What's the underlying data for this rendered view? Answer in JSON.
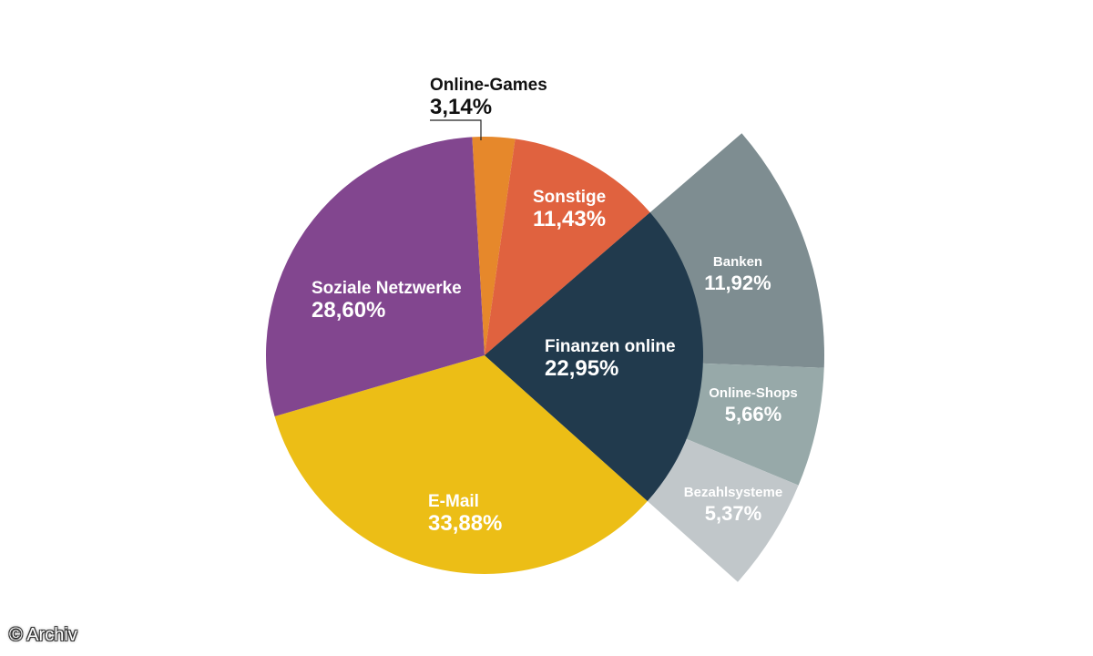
{
  "credit": "© Archiv",
  "chart_data": {
    "type": "pie",
    "title": "",
    "slices": [
      {
        "label": "E-Mail",
        "value": 33.88,
        "value_label": "33,88%",
        "color": "#ecbe16"
      },
      {
        "label": "Soziale Netzwerke",
        "value": 28.6,
        "value_label": "28,60%",
        "color": "#82468f"
      },
      {
        "label": "Online-Games",
        "value": 3.14,
        "value_label": "3,14%",
        "color": "#e6882b"
      },
      {
        "label": "Sonstige",
        "value": 11.43,
        "value_label": "11,43%",
        "color": "#e0623f"
      },
      {
        "label": "Finanzen online",
        "value": 22.95,
        "value_label": "22,95%",
        "color": "#213a4d"
      }
    ],
    "breakdown": {
      "parent": "Finanzen online",
      "slices": [
        {
          "label": "Banken",
          "value": 11.92,
          "value_label": "11,92%",
          "color": "#7e8d91"
        },
        {
          "label": "Online-Shops",
          "value": 5.66,
          "value_label": "5,66%",
          "color": "#97a9a9"
        },
        {
          "label": "Bezahlsysteme",
          "value": 5.37,
          "value_label": "5,37%",
          "color": "#c1c7ca"
        }
      ]
    }
  }
}
